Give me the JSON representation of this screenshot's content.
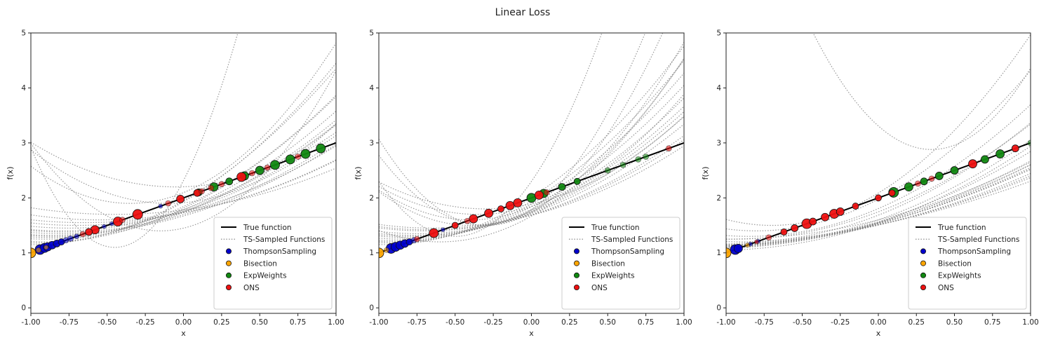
{
  "figure": {
    "title": "Linear Loss"
  },
  "colors": {
    "true_function": "#000000",
    "ts_sampled": "#7f7f7f",
    "ThompsonSampling": "#0000cc",
    "Bisection": "#ffa500",
    "ExpWeights": "#118811",
    "ONS": "#ee1111"
  },
  "chart_data": [
    {
      "type": "line",
      "title": "",
      "xlabel": "x",
      "ylabel": "f(x)",
      "xlim": [
        -1.0,
        1.0
      ],
      "ylim": [
        -0.1,
        5.0
      ],
      "xticks": [
        "-1.00",
        "-0.75",
        "-0.50",
        "-0.25",
        "0.00",
        "0.25",
        "0.50",
        "0.75",
        "1.00"
      ],
      "yticks": [
        "0",
        "1",
        "2",
        "3",
        "4",
        "5"
      ],
      "legend": {
        "position": "lower-right",
        "entries": [
          "True function",
          "TS-Sampled Functions",
          "ThompsonSampling",
          "Bisection",
          "ExpWeights",
          "ONS"
        ]
      },
      "true_function": {
        "slope": 1.0,
        "intercept": 2.0
      },
      "ts_sampled_functions": [
        {
          "a": 0.9,
          "v": 1.2,
          "m": -0.9
        },
        {
          "a": 0.75,
          "v": 1.3,
          "m": -0.85
        },
        {
          "a": 0.6,
          "v": 1.4,
          "m": -0.8
        },
        {
          "a": 0.5,
          "v": 1.5,
          "m": -0.7
        },
        {
          "a": 0.45,
          "v": 1.6,
          "m": -0.55
        },
        {
          "a": 0.4,
          "v": 1.7,
          "m": -0.45
        },
        {
          "a": 0.5,
          "v": 1.35,
          "m": -0.8
        },
        {
          "a": 0.6,
          "v": 1.25,
          "m": -0.9
        },
        {
          "a": 0.7,
          "v": 1.18,
          "m": -0.95
        },
        {
          "a": 0.55,
          "v": 1.45,
          "m": -0.75
        },
        {
          "a": 0.8,
          "v": 1.15,
          "m": -1.0
        },
        {
          "a": 0.65,
          "v": 1.28,
          "m": -0.88
        },
        {
          "a": 0.52,
          "v": 1.38,
          "m": -0.78
        },
        {
          "a": 0.42,
          "v": 1.55,
          "m": -0.65
        },
        {
          "a": 0.58,
          "v": 1.32,
          "m": -0.86
        },
        {
          "a": 6.0,
          "v": 1.1,
          "m": -0.45
        },
        {
          "a": 2.2,
          "v": 1.4,
          "m": -0.15
        },
        {
          "a": 1.6,
          "v": 1.9,
          "m": -0.35
        },
        {
          "a": 1.2,
          "v": 1.9,
          "m": -0.1
        },
        {
          "a": 0.9,
          "v": 2.2,
          "m": -0.05
        }
      ],
      "points": {
        "ThompsonSampling": [
          {
            "x": -0.94,
            "s": 14
          },
          {
            "x": -0.91,
            "s": 13
          },
          {
            "x": -0.89,
            "s": 12
          },
          {
            "x": -0.86,
            "s": 11
          },
          {
            "x": -0.83,
            "s": 10
          },
          {
            "x": -0.8,
            "s": 9
          },
          {
            "x": -0.77,
            "s": 8
          },
          {
            "x": -0.74,
            "s": 8
          },
          {
            "x": -0.7,
            "s": 7
          },
          {
            "x": -0.52,
            "s": 6
          },
          {
            "x": -0.47,
            "s": 6
          },
          {
            "x": -0.15,
            "s": 6
          }
        ],
        "Bisection": [
          {
            "x": -1.0,
            "s": 14
          },
          {
            "x": -0.95,
            "s": 7
          },
          {
            "x": -0.9,
            "s": 6
          }
        ],
        "ExpWeights": [
          {
            "x": 0.9,
            "s": 13
          },
          {
            "x": 0.8,
            "s": 13
          },
          {
            "x": 0.7,
            "s": 13
          },
          {
            "x": 0.6,
            "s": 13
          },
          {
            "x": 0.5,
            "s": 12
          },
          {
            "x": 0.4,
            "s": 12
          },
          {
            "x": 0.3,
            "s": 10
          },
          {
            "x": 0.2,
            "s": 12
          },
          {
            "x": 0.1,
            "s": 10
          }
        ],
        "ONS": [
          {
            "x": -0.3,
            "s": 14
          },
          {
            "x": -0.43,
            "s": 13
          },
          {
            "x": -0.58,
            "s": 12
          },
          {
            "x": -0.62,
            "s": 10
          },
          {
            "x": -0.02,
            "s": 11
          },
          {
            "x": 0.09,
            "s": 10
          },
          {
            "x": 0.12,
            "s": 8
          },
          {
            "x": 0.38,
            "s": 13
          },
          {
            "x": 0.45,
            "s": 8
          },
          {
            "x": 0.25,
            "s": 8
          },
          {
            "x": -0.66,
            "s": 8
          },
          {
            "x": -0.1,
            "s": 8
          },
          {
            "x": 0.55,
            "s": 8
          },
          {
            "x": 0.75,
            "s": 8
          },
          {
            "x": 0.18,
            "s": 8
          },
          {
            "x": -0.4,
            "s": 8
          }
        ]
      }
    },
    {
      "type": "line",
      "title": "",
      "xlabel": "x",
      "ylabel": "f(x)",
      "xlim": [
        -1.0,
        1.0
      ],
      "ylim": [
        -0.1,
        5.0
      ],
      "xticks": [
        "-1.00",
        "-0.75",
        "-0.50",
        "-0.25",
        "0.00",
        "0.25",
        "0.50",
        "0.75",
        "1.00"
      ],
      "yticks": [
        "0",
        "1",
        "2",
        "3",
        "4",
        "5"
      ],
      "legend": {
        "position": "lower-right",
        "entries": [
          "True function",
          "TS-Sampled Functions",
          "ThompsonSampling",
          "Bisection",
          "ExpWeights",
          "ONS"
        ]
      },
      "true_function": {
        "slope": 1.0,
        "intercept": 2.0
      },
      "ts_sampled_functions": [
        {
          "a": 0.95,
          "v": 1.15,
          "m": -0.95
        },
        {
          "a": 0.85,
          "v": 1.2,
          "m": -0.9
        },
        {
          "a": 0.75,
          "v": 1.25,
          "m": -0.85
        },
        {
          "a": 0.7,
          "v": 1.3,
          "m": -0.8
        },
        {
          "a": 0.65,
          "v": 1.35,
          "m": -0.75
        },
        {
          "a": 0.6,
          "v": 1.4,
          "m": -0.7
        },
        {
          "a": 0.55,
          "v": 1.45,
          "m": -0.65
        },
        {
          "a": 0.8,
          "v": 1.22,
          "m": -0.88
        },
        {
          "a": 0.68,
          "v": 1.32,
          "m": -0.78
        },
        {
          "a": 0.58,
          "v": 1.42,
          "m": -0.68
        },
        {
          "a": 0.9,
          "v": 1.18,
          "m": -0.92
        },
        {
          "a": 0.72,
          "v": 1.28,
          "m": -0.82
        },
        {
          "a": 3.2,
          "v": 1.5,
          "m": -0.3
        },
        {
          "a": 2.6,
          "v": 1.5,
          "m": -0.3
        },
        {
          "a": 1.7,
          "v": 1.5,
          "m": -0.4
        },
        {
          "a": 1.5,
          "v": 1.6,
          "m": -0.4
        },
        {
          "a": 1.2,
          "v": 1.7,
          "m": -0.35
        },
        {
          "a": 1.0,
          "v": 1.8,
          "m": -0.3
        },
        {
          "a": 1.3,
          "v": 1.2,
          "m": -0.6
        },
        {
          "a": 4.0,
          "v": 1.3,
          "m": -0.5
        }
      ],
      "points": {
        "ThompsonSampling": [
          {
            "x": -0.92,
            "s": 14
          },
          {
            "x": -0.89,
            "s": 13
          },
          {
            "x": -0.86,
            "s": 12
          },
          {
            "x": -0.83,
            "s": 11
          },
          {
            "x": -0.8,
            "s": 9
          },
          {
            "x": -0.77,
            "s": 8
          },
          {
            "x": -0.58,
            "s": 6
          }
        ],
        "Bisection": [
          {
            "x": -1.0,
            "s": 14
          },
          {
            "x": -0.95,
            "s": 7
          }
        ],
        "ExpWeights": [
          {
            "x": 0.0,
            "s": 13
          },
          {
            "x": 0.08,
            "s": 12
          },
          {
            "x": 0.2,
            "s": 10
          },
          {
            "x": 0.3,
            "s": 9
          },
          {
            "x": 0.5,
            "s": 8
          },
          {
            "x": 0.6,
            "s": 8
          },
          {
            "x": 0.7,
            "s": 8
          },
          {
            "x": 0.75,
            "s": 8
          }
        ],
        "ONS": [
          {
            "x": -0.64,
            "s": 13
          },
          {
            "x": -0.38,
            "s": 12
          },
          {
            "x": -0.28,
            "s": 12
          },
          {
            "x": -0.14,
            "s": 12
          },
          {
            "x": -0.09,
            "s": 12
          },
          {
            "x": 0.05,
            "s": 12
          },
          {
            "x": -0.5,
            "s": 9
          },
          {
            "x": -0.2,
            "s": 9
          },
          {
            "x": -0.75,
            "s": 8
          },
          {
            "x": -0.42,
            "s": 8
          },
          {
            "x": 0.1,
            "s": 8
          },
          {
            "x": 0.9,
            "s": 8
          }
        ]
      }
    },
    {
      "type": "line",
      "title": "",
      "xlabel": "x",
      "ylabel": "f(x)",
      "xlim": [
        -1.0,
        1.0
      ],
      "ylim": [
        -0.1,
        5.0
      ],
      "xticks": [
        "-1.00",
        "-0.75",
        "-0.50",
        "-0.25",
        "0.00",
        "0.25",
        "0.50",
        "0.75",
        "1.00"
      ],
      "yticks": [
        "0",
        "1",
        "2",
        "3",
        "4",
        "5"
      ],
      "legend": {
        "position": "lower-right",
        "entries": [
          "True function",
          "TS-Sampled Functions",
          "ThompsonSampling",
          "Bisection",
          "ExpWeights",
          "ONS"
        ]
      },
      "true_function": {
        "slope": 1.0,
        "intercept": 2.0
      },
      "ts_sampled_functions": [
        {
          "a": 0.3,
          "v": 1.1,
          "m": -1.2
        },
        {
          "a": 0.28,
          "v": 1.1,
          "m": -1.25
        },
        {
          "a": 0.26,
          "v": 1.12,
          "m": -1.22
        },
        {
          "a": 0.32,
          "v": 1.08,
          "m": -1.18
        },
        {
          "a": 0.24,
          "v": 1.12,
          "m": -1.28
        },
        {
          "a": 0.34,
          "v": 1.1,
          "m": -1.15
        },
        {
          "a": 0.22,
          "v": 1.14,
          "m": -1.3
        },
        {
          "a": 0.29,
          "v": 1.11,
          "m": -1.21
        },
        {
          "a": 0.27,
          "v": 1.09,
          "m": -1.24
        },
        {
          "a": 0.31,
          "v": 1.12,
          "m": -1.19
        },
        {
          "a": 0.45,
          "v": 1.05,
          "m": -1.05
        },
        {
          "a": 0.4,
          "v": 1.08,
          "m": -1.1
        },
        {
          "a": 0.5,
          "v": 1.15,
          "m": -0.95
        },
        {
          "a": 0.6,
          "v": 1.2,
          "m": -0.9
        },
        {
          "a": 0.35,
          "v": 1.25,
          "m": -1.0
        },
        {
          "a": 3.5,
          "v": 2.88,
          "m": 0.35
        },
        {
          "a": 1.2,
          "v": 1.5,
          "m": -0.7
        },
        {
          "a": 0.9,
          "v": 1.4,
          "m": -0.8
        },
        {
          "a": 0.7,
          "v": 1.3,
          "m": -0.85
        },
        {
          "a": 0.55,
          "v": 1.25,
          "m": -0.95
        }
      ],
      "points": {
        "ThompsonSampling": [
          {
            "x": -0.94,
            "s": 14
          },
          {
            "x": -0.92,
            "s": 12
          },
          {
            "x": -0.84,
            "s": 6
          },
          {
            "x": -0.79,
            "s": 6
          }
        ],
        "Bisection": [
          {
            "x": -1.0,
            "s": 14
          },
          {
            "x": -0.86,
            "s": 6
          }
        ],
        "ExpWeights": [
          {
            "x": 0.1,
            "s": 14
          },
          {
            "x": 0.2,
            "s": 12
          },
          {
            "x": 0.3,
            "s": 10
          },
          {
            "x": 0.4,
            "s": 11
          },
          {
            "x": 0.5,
            "s": 11
          },
          {
            "x": 0.7,
            "s": 11
          },
          {
            "x": 0.8,
            "s": 12
          },
          {
            "x": 1.0,
            "s": 8
          }
        ],
        "ONS": [
          {
            "x": -0.47,
            "s": 14
          },
          {
            "x": -0.29,
            "s": 13
          },
          {
            "x": -0.25,
            "s": 11
          },
          {
            "x": -0.35,
            "s": 11
          },
          {
            "x": -0.43,
            "s": 10
          },
          {
            "x": -0.55,
            "s": 10
          },
          {
            "x": -0.62,
            "s": 9
          },
          {
            "x": -0.72,
            "s": 8
          },
          {
            "x": -0.15,
            "s": 9
          },
          {
            "x": 0.0,
            "s": 9
          },
          {
            "x": 0.09,
            "s": 9
          },
          {
            "x": 0.62,
            "s": 12
          },
          {
            "x": 0.9,
            "s": 10
          },
          {
            "x": -0.8,
            "s": 6
          },
          {
            "x": 0.26,
            "s": 8
          },
          {
            "x": 0.35,
            "s": 8
          }
        ]
      }
    }
  ]
}
